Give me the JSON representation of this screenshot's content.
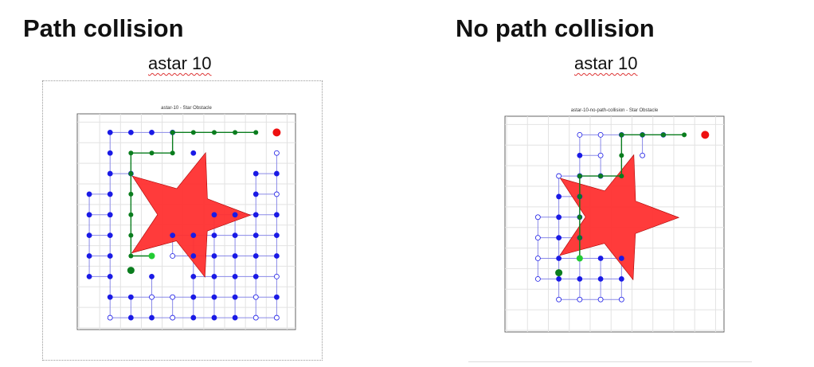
{
  "left": {
    "heading": "Path collision",
    "caption": "astar 10",
    "plot_title": "astar-10 - Star Obstacle"
  },
  "right": {
    "heading": "No path collision",
    "caption": "astar 10",
    "plot_title": "astar-10-no-path-collision - Star Obstacle"
  },
  "colors": {
    "blue": "#1a1ae6",
    "green": "#0a7d1e",
    "bright_green": "#22cc33",
    "star": "#ff3030",
    "goal": "#ee1111"
  },
  "chart_data": [
    {
      "type": "scatter",
      "title": "astar-10 - Star Obstacle",
      "grid": true,
      "grid_size": [
        10,
        10
      ],
      "xlim": [
        0,
        10
      ],
      "ylim": [
        0,
        10
      ],
      "obstacle": "star",
      "start": [
        2,
        2.3
      ],
      "goal": [
        9,
        9
      ],
      "path": [
        [
          3,
          3
        ],
        [
          2,
          3
        ],
        [
          2,
          4
        ],
        [
          2,
          5
        ],
        [
          2,
          6
        ],
        [
          2,
          7
        ],
        [
          2,
          8
        ],
        [
          3,
          8
        ],
        [
          4,
          8
        ],
        [
          4,
          9
        ],
        [
          5,
          9
        ],
        [
          6,
          9
        ],
        [
          7,
          9
        ],
        [
          8,
          9
        ]
      ],
      "explored": [
        [
          1,
          9
        ],
        [
          2,
          9
        ],
        [
          3,
          9
        ],
        [
          4,
          9
        ],
        [
          1,
          8
        ],
        [
          5,
          8
        ],
        [
          9,
          8
        ],
        [
          1,
          7
        ],
        [
          2,
          7
        ],
        [
          8,
          7
        ],
        [
          9,
          7
        ],
        [
          0,
          6
        ],
        [
          1,
          6
        ],
        [
          8,
          6
        ],
        [
          9,
          6
        ],
        [
          0,
          5
        ],
        [
          1,
          5
        ],
        [
          6,
          5
        ],
        [
          7,
          5
        ],
        [
          8,
          5
        ],
        [
          9,
          5
        ],
        [
          0,
          4
        ],
        [
          1,
          4
        ],
        [
          4,
          4
        ],
        [
          5,
          4
        ],
        [
          6,
          4
        ],
        [
          7,
          4
        ],
        [
          8,
          4
        ],
        [
          9,
          4
        ],
        [
          0,
          3
        ],
        [
          1,
          3
        ],
        [
          4,
          3
        ],
        [
          5,
          3
        ],
        [
          6,
          3
        ],
        [
          7,
          3
        ],
        [
          8,
          3
        ],
        [
          9,
          3
        ],
        [
          0,
          2
        ],
        [
          1,
          2
        ],
        [
          3,
          2
        ],
        [
          5,
          2
        ],
        [
          6,
          2
        ],
        [
          7,
          2
        ],
        [
          8,
          2
        ],
        [
          9,
          2
        ],
        [
          1,
          1
        ],
        [
          2,
          1
        ],
        [
          3,
          1
        ],
        [
          4,
          1
        ],
        [
          5,
          1
        ],
        [
          6,
          1
        ],
        [
          7,
          1
        ],
        [
          8,
          1
        ],
        [
          9,
          1
        ],
        [
          1,
          0
        ],
        [
          2,
          0
        ],
        [
          3,
          0
        ],
        [
          4,
          0
        ],
        [
          5,
          0
        ],
        [
          6,
          0
        ],
        [
          7,
          0
        ],
        [
          8,
          0
        ],
        [
          9,
          0
        ]
      ],
      "frontier": [
        [
          0,
          9
        ],
        [
          5,
          9
        ],
        [
          7,
          9
        ],
        [
          9,
          8
        ],
        [
          0,
          7
        ],
        [
          3,
          7
        ],
        [
          9,
          6
        ],
        [
          4,
          3
        ],
        [
          9,
          2
        ],
        [
          3,
          1
        ],
        [
          4,
          1
        ],
        [
          8,
          1
        ],
        [
          1,
          0
        ],
        [
          4,
          0
        ],
        [
          8,
          0
        ],
        [
          9,
          0
        ]
      ]
    },
    {
      "type": "scatter",
      "title": "astar-10-no-path-collision - Star Obstacle",
      "grid": true,
      "grid_size": [
        10,
        10
      ],
      "xlim": [
        0,
        10
      ],
      "ylim": [
        0,
        10
      ],
      "obstacle": "star",
      "start": [
        2,
        2.3
      ],
      "goal": [
        9,
        9
      ],
      "path": [
        [
          3,
          3
        ],
        [
          3,
          4
        ],
        [
          3,
          5
        ],
        [
          3,
          6
        ],
        [
          3,
          7
        ],
        [
          4,
          7
        ],
        [
          5,
          7
        ],
        [
          5,
          8
        ],
        [
          5,
          9
        ],
        [
          6,
          9
        ],
        [
          7,
          9
        ],
        [
          8,
          9
        ]
      ],
      "explored": [
        [
          3,
          9
        ],
        [
          4,
          9
        ],
        [
          5,
          9
        ],
        [
          6,
          9
        ],
        [
          7,
          9
        ],
        [
          3,
          8
        ],
        [
          4,
          8
        ],
        [
          6,
          8
        ],
        [
          2,
          7
        ],
        [
          3,
          7
        ],
        [
          4,
          7
        ],
        [
          2,
          6
        ],
        [
          3,
          6
        ],
        [
          1,
          5
        ],
        [
          2,
          5
        ],
        [
          3,
          5
        ],
        [
          1,
          4
        ],
        [
          2,
          4
        ],
        [
          3,
          4
        ],
        [
          1,
          3
        ],
        [
          2,
          3
        ],
        [
          3,
          3
        ],
        [
          4,
          3
        ],
        [
          5,
          3
        ],
        [
          1,
          2
        ],
        [
          2,
          2
        ],
        [
          3,
          2
        ],
        [
          4,
          2
        ],
        [
          5,
          2
        ],
        [
          2,
          1
        ],
        [
          3,
          1
        ],
        [
          4,
          1
        ],
        [
          5,
          1
        ]
      ],
      "frontier": [
        [
          3,
          9
        ],
        [
          4,
          9
        ],
        [
          5,
          9
        ],
        [
          6,
          9
        ],
        [
          7,
          9
        ],
        [
          4,
          8
        ],
        [
          6,
          8
        ],
        [
          2,
          7
        ],
        [
          1,
          6
        ],
        [
          1,
          5
        ],
        [
          1,
          4
        ],
        [
          1,
          3
        ],
        [
          1,
          2
        ],
        [
          2,
          1
        ],
        [
          3,
          1
        ],
        [
          4,
          1
        ],
        [
          5,
          1
        ]
      ]
    }
  ]
}
